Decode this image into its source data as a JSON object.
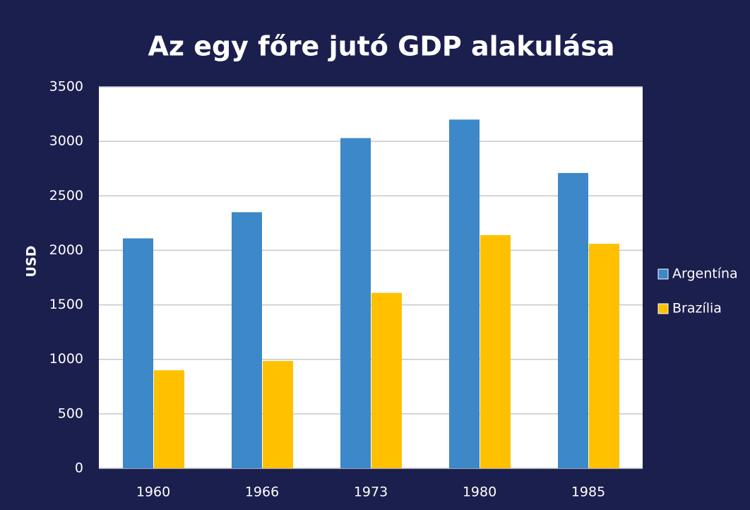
{
  "chart_data": {
    "type": "bar",
    "title": "Az egy főre jutó GDP alakulása",
    "y_label": "USD",
    "categories": [
      "1960",
      "1966",
      "1973",
      "1980",
      "1985"
    ],
    "series": [
      {
        "name": "Argentína",
        "color": "#3c88c8",
        "values": [
          2110,
          2350,
          3030,
          3200,
          2710
        ]
      },
      {
        "name": "Brazília",
        "color": "#ffc000",
        "values": [
          900,
          985,
          1610,
          2140,
          2060
        ]
      }
    ],
    "ylim": [
      0,
      3500
    ],
    "yticks": [
      0,
      500,
      1000,
      1500,
      2000,
      2500,
      3000,
      3500
    ],
    "grid": true,
    "legend": "right"
  }
}
